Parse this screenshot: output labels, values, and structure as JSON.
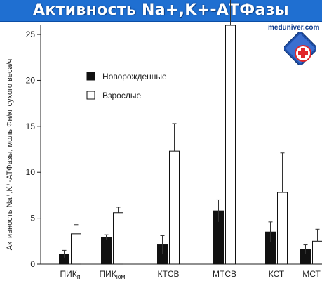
{
  "header": {
    "title": "Активность Na+,K+-АТФазы",
    "site": "meduniver.com"
  },
  "colors": {
    "banner": "#1f6fd1",
    "newborn_bar": "#111111",
    "adult_bar": "#ffffff",
    "logo_red": "#e0262b",
    "logo_blue": "#1f4fa8"
  },
  "icons": {
    "logo": "medical-cross-shield-icon"
  },
  "chart_data": {
    "type": "bar",
    "title": "Активность Na+,K+-АТФазы",
    "ylabel": "Активность Na⁺,K⁺-АТФазы, моль Фн/кг сухого веса/ч",
    "xlabel": "",
    "ylim": [
      0,
      26
    ],
    "yticks": [
      0,
      5,
      10,
      15,
      20,
      25
    ],
    "categories": [
      "ПИКп",
      "ПИКюм",
      "КТСВ",
      "МТСВ",
      "КСТ",
      "МСТ"
    ],
    "category_labels": [
      {
        "base": "ПИК",
        "sub": "п"
      },
      {
        "base": "ПИК",
        "sub": "юм"
      },
      {
        "base": "КТСВ",
        "sub": ""
      },
      {
        "base": "МТСВ",
        "sub": ""
      },
      {
        "base": "КСТ",
        "sub": ""
      },
      {
        "base": "МСТ",
        "sub": ""
      }
    ],
    "legend": {
      "placement": "upper-left"
    },
    "grid": false,
    "series": [
      {
        "name": "Новорожденные",
        "fill": "#111111",
        "values": [
          1.1,
          2.9,
          2.1,
          5.8,
          3.5,
          1.6
        ],
        "errors": [
          0.4,
          0.3,
          1.0,
          1.2,
          1.1,
          0.5
        ]
      },
      {
        "name": "Взрослые",
        "fill": "#ffffff",
        "values": [
          3.3,
          5.6,
          12.3,
          26.0,
          7.8,
          2.5
        ],
        "errors": [
          1.0,
          0.6,
          3.0,
          4.0,
          4.3,
          1.3
        ]
      }
    ]
  }
}
